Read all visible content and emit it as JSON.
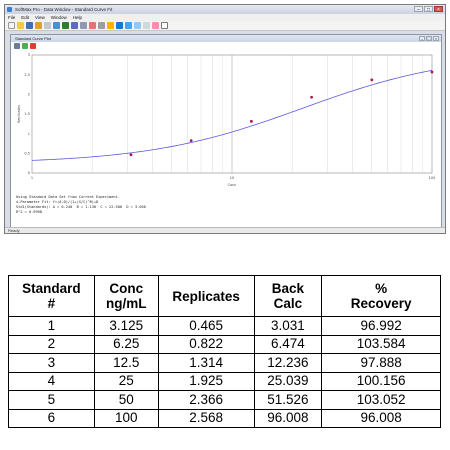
{
  "window": {
    "title": "SoftMax Pro - Data Window - Standard Curve Fit",
    "menu": [
      "File",
      "Edit",
      "View",
      "Window",
      "Help"
    ],
    "controls": {
      "minimize": "–",
      "maximize": "□",
      "close": "×"
    }
  },
  "document": {
    "title": "Standard Curve Plot",
    "controls": {
      "minimize": "–",
      "maximize": "□",
      "close": "×"
    }
  },
  "plot": {
    "xlabel": "Conc",
    "ylabel": "Replicates",
    "x_ticks": [
      "1",
      "10",
      "100"
    ],
    "y_ticks": [
      "0",
      "0.5",
      "1",
      "1.5",
      "2",
      "2.5",
      "3"
    ]
  },
  "chart_data": {
    "type": "scatter",
    "x_scale": "log",
    "xlim": [
      1,
      100
    ],
    "ylim": [
      0,
      3
    ],
    "points": [
      {
        "x": 3.125,
        "y": 0.465
      },
      {
        "x": 6.25,
        "y": 0.822
      },
      {
        "x": 12.5,
        "y": 1.314
      },
      {
        "x": 25,
        "y": 1.925
      },
      {
        "x": 50,
        "y": 2.366
      },
      {
        "x": 100,
        "y": 2.568
      }
    ],
    "curve": {
      "A": 0.24,
      "B": 1.13,
      "C": 22.5,
      "D": 3.05
    },
    "point_color": "#b0125a",
    "curve_color": "#5a5adc"
  },
  "info": {
    "line1": "Using Standard Data Set from Current Experiment.",
    "line2": "4-Parameter Fit: Y=(A-D)/(1+(X/C)^B)+D",
    "line3": "Std1(Standards): A = 0.240  B = 1.130  C = 22.500  D = 3.050",
    "line4": "R^2 = 0.9998"
  },
  "status": "Ready",
  "table": {
    "headers": [
      "Standard #",
      "Conc ng/mL",
      "Replicates",
      "Back Calc",
      "% Recovery"
    ],
    "rows": [
      [
        "1",
        "3.125",
        "0.465",
        "3.031",
        "96.992"
      ],
      [
        "2",
        "6.25",
        "0.822",
        "6.474",
        "103.584"
      ],
      [
        "3",
        "12.5",
        "1.314",
        "12.236",
        "97.888"
      ],
      [
        "4",
        "25",
        "1.925",
        "25.039",
        "100.156"
      ],
      [
        "5",
        "50",
        "2.366",
        "51.526",
        "103.052"
      ],
      [
        "6",
        "100",
        "2.568",
        "96.008",
        "96.008"
      ]
    ]
  }
}
